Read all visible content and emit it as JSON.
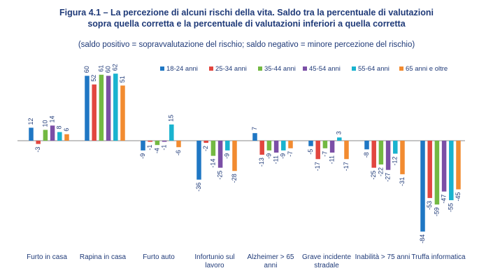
{
  "figure": {
    "title_line1": "Figura 4.1 – La percezione di alcuni rischi della vita. Saldo tra la percentuale di valutazioni",
    "title_line2": "sopra quella corretta e la percentuale di valutazioni inferiori a quella corretta",
    "subtitle": "(saldo positivo = sopravvalutazione del rischio; saldo negativo = minore percezione del rischio)"
  },
  "chart_data": {
    "type": "bar",
    "title": "Figura 4.1 – La percezione di alcuni rischi della vita. Saldo tra la percentuale di valutazioni sopra quella corretta e la percentuale di valutazioni inferiori a quella corretta",
    "subtitle": "(saldo positivo = sopravvalutazione del rischio; saldo negativo = minore percezione del rischio)",
    "categories": [
      [
        "Furto in casa"
      ],
      [
        "Rapina in casa"
      ],
      [
        "Furto auto"
      ],
      [
        "Infortunio sul",
        "lavoro"
      ],
      [
        "Alzheimer > 65",
        "anni"
      ],
      [
        "Grave incidente",
        "stradale"
      ],
      [
        "Inabilità > 75 anni"
      ],
      [
        "Truffa informatica"
      ]
    ],
    "series": [
      {
        "name": "18-24 anni",
        "color": "#1f77c4",
        "values": [
          12,
          60,
          -9,
          -36,
          7,
          -5,
          -8,
          -84
        ]
      },
      {
        "name": "25-34 anni",
        "color": "#e2463f",
        "values": [
          -3,
          52,
          -1,
          -2,
          -13,
          -17,
          -25,
          -53
        ]
      },
      {
        "name": "35-44 anni",
        "color": "#73b942",
        "values": [
          10,
          61,
          -4,
          -14,
          -9,
          -7,
          -22,
          -59
        ]
      },
      {
        "name": "45-54 anni",
        "color": "#7b4fa6",
        "values": [
          14,
          60,
          -1,
          -25,
          -11,
          -11,
          -27,
          -47
        ]
      },
      {
        "name": "55-64 anni",
        "color": "#19b3cf",
        "values": [
          8,
          62,
          15,
          -9,
          -9,
          3,
          -12,
          -55
        ]
      },
      {
        "name": "65 anni e oltre",
        "color": "#f28b30",
        "values": [
          6,
          51,
          -6,
          -28,
          -7,
          -17,
          -31,
          -45
        ]
      }
    ],
    "legend_position": "top-right",
    "grid": false,
    "ylim": [
      -84,
      62
    ]
  }
}
